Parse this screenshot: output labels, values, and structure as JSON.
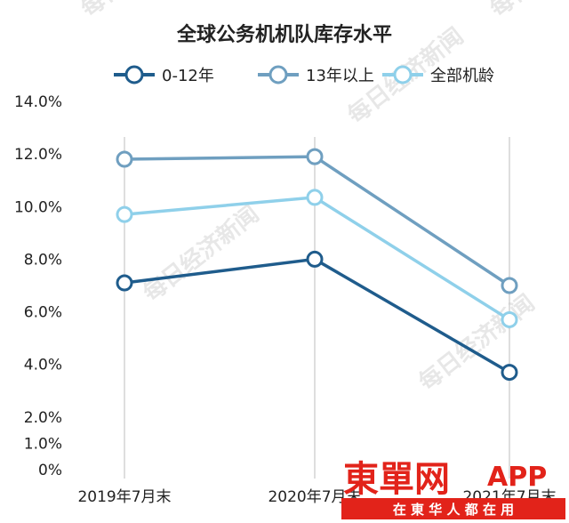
{
  "chart_data": {
    "type": "line",
    "title": "全球公务机机队库存水平",
    "categories": [
      "2019年7月末",
      "2020年7月末",
      "2021年7月末"
    ],
    "yticks": [
      "0%",
      "1.0%",
      "2.0%",
      "4.0%",
      "6.0%",
      "8.0%",
      "10.0%",
      "12.0%",
      "14.0%"
    ],
    "ylim": [
      0,
      14
    ],
    "grid": false,
    "legend_position": "top",
    "series": [
      {
        "name": "0-12年",
        "color": "#1f5c8c",
        "values": [
          7.1,
          8.0,
          3.7
        ]
      },
      {
        "name": "13年以上",
        "color": "#6f9fc0",
        "values": [
          11.8,
          11.9,
          7.0
        ]
      },
      {
        "name": "全部机龄",
        "color": "#8fd0ea",
        "values": [
          9.7,
          10.35,
          5.7
        ]
      }
    ]
  },
  "watermark_text": "每日经济新闻",
  "logo": {
    "main": "東單网",
    "app": "APP",
    "sub": "在 東 华 人 都 在 用"
  }
}
